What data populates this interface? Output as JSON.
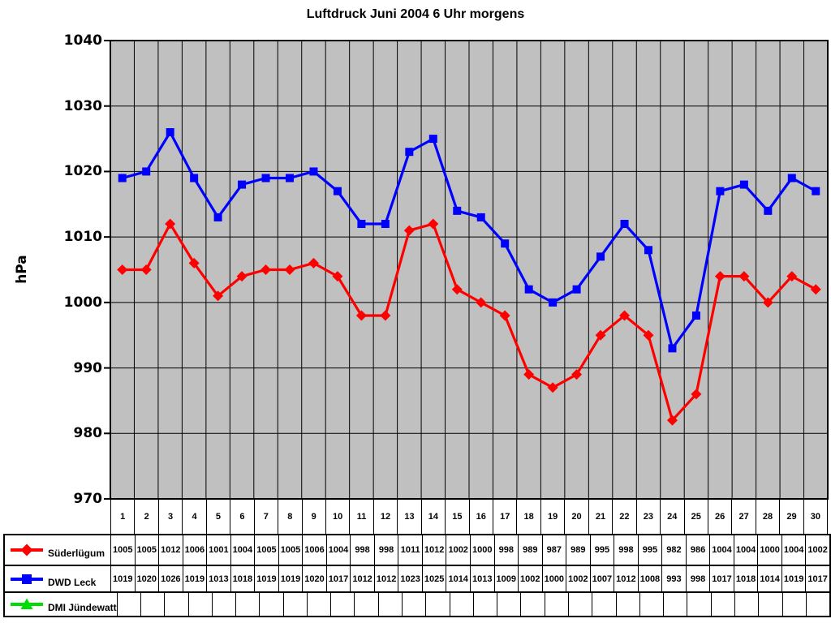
{
  "chart_data": {
    "type": "line",
    "title": "Luftdruck Juni 2004 6 Uhr morgens",
    "xlabel": "",
    "ylabel": "hPa",
    "ylim": [
      970,
      1040
    ],
    "y_step": 10,
    "y_ticks": [
      1040,
      1030,
      1020,
      1010,
      1000,
      990,
      980,
      970
    ],
    "grid": "both",
    "grid_color": "#000000",
    "plot_background": "#C0C0C0",
    "legend_position": "data-table-left",
    "categories": [
      1,
      2,
      3,
      4,
      5,
      6,
      7,
      8,
      9,
      10,
      11,
      12,
      13,
      14,
      15,
      16,
      17,
      18,
      19,
      20,
      21,
      22,
      23,
      24,
      25,
      26,
      27,
      28,
      29,
      30
    ],
    "series": [
      {
        "name": "Süderlügum",
        "marker": "diamond",
        "color": "#FF0000",
        "values": [
          1005,
          1005,
          1012,
          1006,
          1001,
          1004,
          1005,
          1005,
          1006,
          1004,
          998,
          998,
          1011,
          1012,
          1002,
          1000,
          998,
          989,
          987,
          989,
          995,
          998,
          995,
          982,
          986,
          1004,
          1004,
          1000,
          1004,
          1002
        ]
      },
      {
        "name": "DWD Leck",
        "marker": "square",
        "color": "#0000FF",
        "values": [
          1019,
          1020,
          1026,
          1019,
          1013,
          1018,
          1019,
          1019,
          1020,
          1017,
          1012,
          1012,
          1023,
          1025,
          1014,
          1013,
          1009,
          1002,
          1000,
          1002,
          1007,
          1012,
          1008,
          993,
          998,
          1017,
          1018,
          1014,
          1019,
          1017
        ]
      },
      {
        "name": "DMI Jündewatt",
        "marker": "triangle",
        "color": "#00DD00",
        "values": []
      }
    ]
  }
}
